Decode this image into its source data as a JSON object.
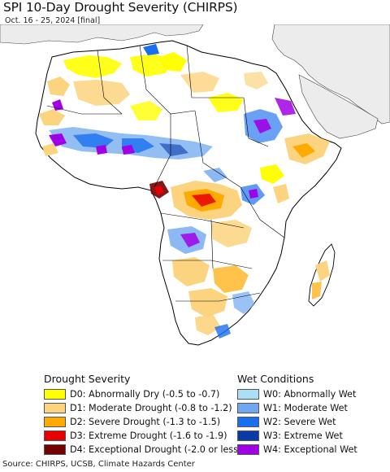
{
  "title": "SPI 10-Day Drought Severity (CHIRPS)",
  "subtitle": "Oct. 16 - 25, 2024 [final]",
  "map": {
    "ocean_color": "#ffffff",
    "land_color": "#ffffff",
    "non_analyzed_land_color": "#ececec",
    "border_color": "#000000"
  },
  "legend": {
    "drought": {
      "heading": "Drought Severity",
      "items": [
        {
          "label": "D0: Abnormally Dry (-0.5 to -0.7)",
          "color": "#ffff00"
        },
        {
          "label": "D1: Moderate Drought (-0.8 to -1.2)",
          "color": "#fcd37f"
        },
        {
          "label": "D2: Severe Drought (-1.3 to -1.5)",
          "color": "#ffaa00"
        },
        {
          "label": "D3: Extreme Drought (-1.6 to -1.9)",
          "color": "#e60000"
        },
        {
          "label": "D4: Exceptional Drought (-2.0 or less)",
          "color": "#730000"
        }
      ]
    },
    "wet": {
      "heading": "Wet Conditions",
      "items": [
        {
          "label": "W0: Abnormally Wet",
          "color": "#aadff5"
        },
        {
          "label": "W1: Moderate Wet",
          "color": "#6fa8f0"
        },
        {
          "label": "W2: Severe Wet",
          "color": "#1a6ff0"
        },
        {
          "label": "W3: Extreme Wet",
          "color": "#0a3aa8"
        },
        {
          "label": "W4: Exceptional Wet",
          "color": "#a000e6"
        }
      ]
    }
  },
  "source": "Source: CHIRPS, UCSB, Climate Hazards Center"
}
